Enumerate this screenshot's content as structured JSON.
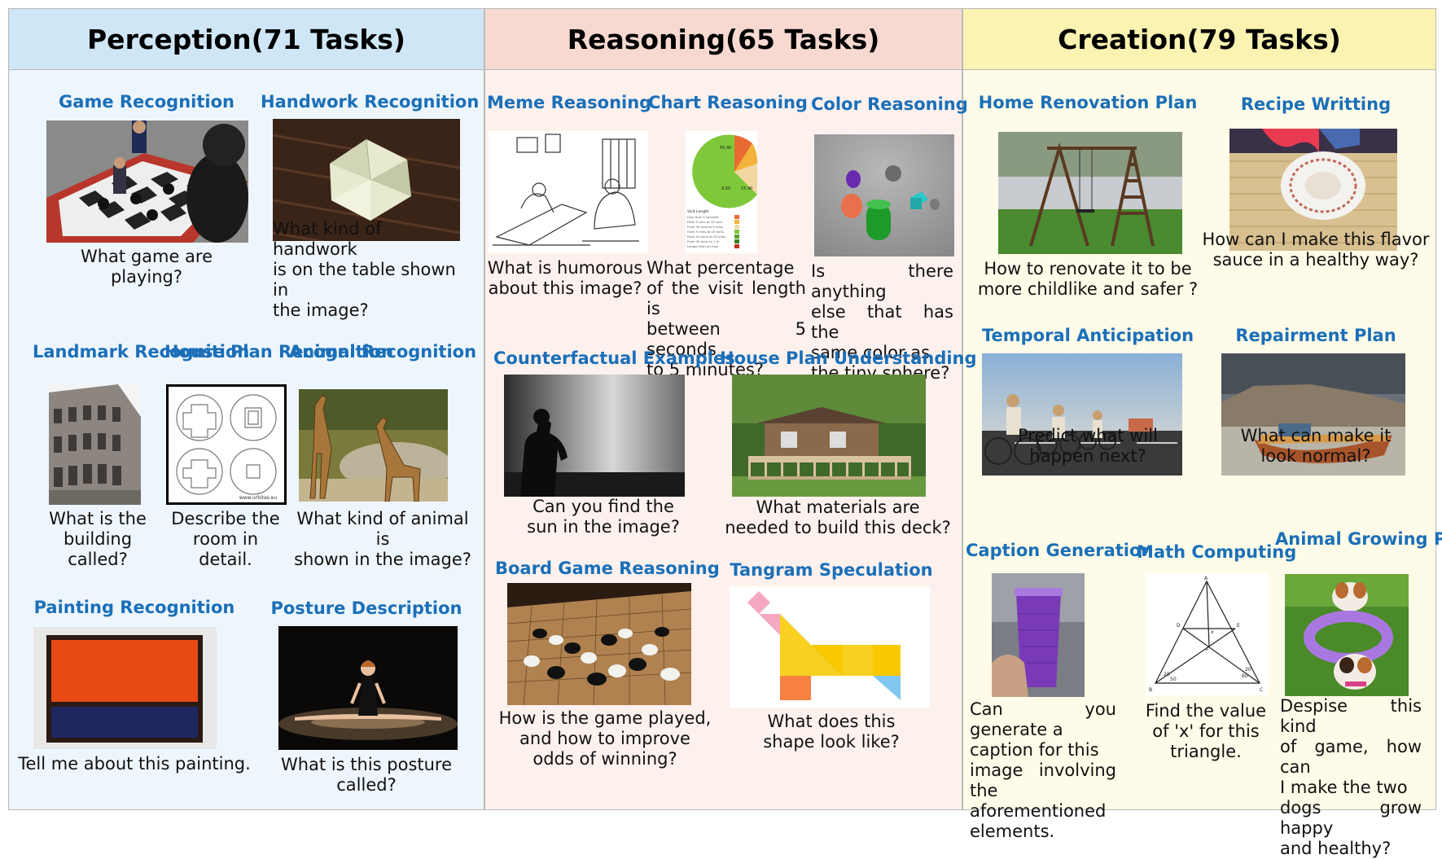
{
  "columns": [
    {
      "title": "Perception(71 Tasks)"
    },
    {
      "title": "Reasoning(65 Tasks)"
    },
    {
      "title": "Creation(79 Tasks)"
    }
  ],
  "tasks": {
    "game_recognition": {
      "title": "Game Recognition",
      "question": "What game are\nplaying?"
    },
    "handwork_recognition": {
      "title": "Handwork Recognition",
      "question": "What kind of handwork\nis on the table shown in\nthe image?"
    },
    "landmark_recognition": {
      "title": "Landmark\nRecognition",
      "question": "What is the\nbuilding called?"
    },
    "house_plan_recognition": {
      "title": "House Plan\nRecognition",
      "question": "Describe the\nroom in detail."
    },
    "animal_recognition": {
      "title": "Animal\nRecognition",
      "question": "What kind of animal is\nshown in the image?"
    },
    "painting_recognition": {
      "title": "Painting Recognition",
      "question": "Tell me about this painting."
    },
    "posture_description": {
      "title": "Posture Description",
      "question": "What is this posture called?"
    },
    "meme_reasoning": {
      "title": "Meme Reasoning",
      "question": "What is humorous\nabout this image?"
    },
    "chart_reasoning": {
      "title": "Chart Reasoning",
      "question": "What percentage\nof the visit length is\nbetween 5 seconds\nto 5 minutes?"
    },
    "color_reasoning": {
      "title": "Color Reasoning",
      "question": "Is there anything\nelse that has the\nsame color as\nthe tiny sphere?"
    },
    "counterfactual_examples": {
      "title": "Counterfactual Examples",
      "question": "Can you find the\nsun in the image?"
    },
    "house_plan_understanding": {
      "title": "House Plan Understanding",
      "question": "What materials are\nneeded to build this deck?"
    },
    "board_game_reasoning": {
      "title": "Board Game Reasoning",
      "question": "How is the game played,\nand how to improve\nodds of winning?"
    },
    "tangram_speculation": {
      "title": "Tangram Speculation",
      "question": "What does this\nshape look like?"
    },
    "home_renovation_plan": {
      "title": "Home Renovation Plan",
      "question": "How to renovate it to be\nmore childlike and safer ?"
    },
    "recipe_writting": {
      "title": "Recipe Writting",
      "question": "How can I make this flavor\nsauce in a healthy way?"
    },
    "temporal_anticipation": {
      "title": "Temporal Anticipation",
      "question": "Predict what will\nhappen next?"
    },
    "repairment_plan": {
      "title": "Repairment Plan",
      "question": "What can make it\nlook normal?"
    },
    "caption_generation": {
      "title": "Caption Generation",
      "question": "Can you generate a\ncaption for this\nimage involving the\naforementioned\nelements."
    },
    "math_computing": {
      "title": "Math Computing",
      "question": "Find the value\nof 'x' for this\ntriangle."
    },
    "animal_growing_plan": {
      "title": "Animal\nGrowing Plan",
      "question": "Despise this kind\nof game, how can\nI make the two\ndogs grow happy\nand healthy?"
    }
  },
  "image_text": {
    "chart_slice_a": "65.40",
    "chart_slice_b": "9.50",
    "chart_slice_c": "15.40",
    "chart_legend_title": "Visit Length",
    "chart_legend_items": [
      "Less than 5 seconds",
      "From 5 secs to 30 secs",
      "From 30 secs to 5 mins",
      "From 5 mins to 10 mins",
      "From 10 mins to 30 mins",
      "From 30 mins to 1 hr",
      "Longer than an hour"
    ],
    "house_plan_watermark": "www.urbitas.eu",
    "math_labels": {
      "a": "A",
      "b": "B",
      "c": "C",
      "d": "D",
      "e": "E",
      "f": "F",
      "x": "x",
      "a20": "20",
      "a50": "50",
      "a60": "60",
      "a20b": "20"
    }
  },
  "colors": {
    "title_blue": "#1b6fb8"
  }
}
